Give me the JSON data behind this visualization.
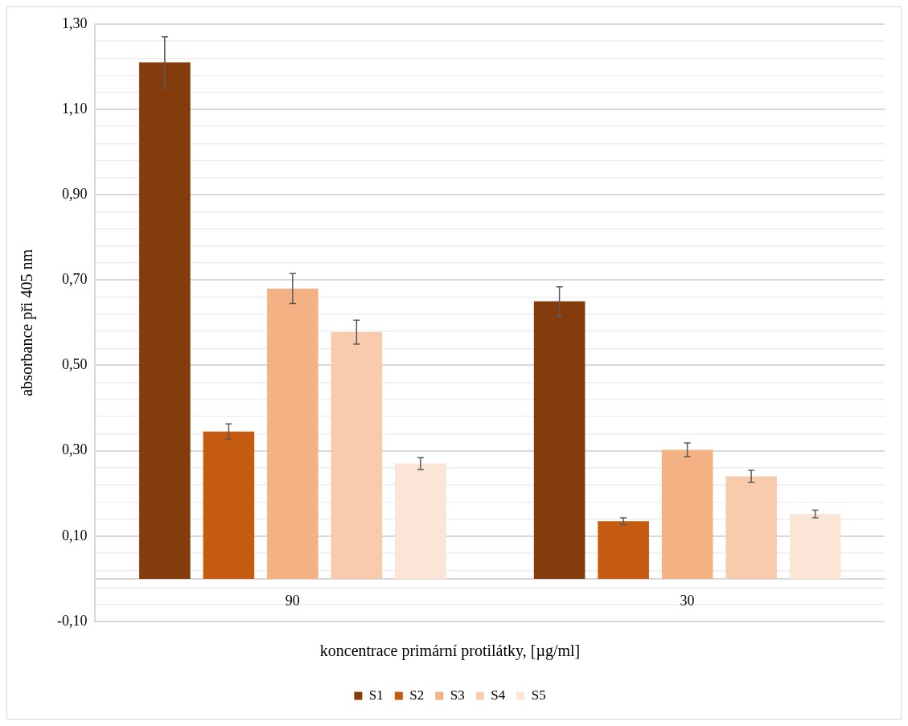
{
  "chart_data": {
    "type": "bar",
    "xlabel": "koncentrace primární protilátky, [µg/ml]",
    "ylabel": "absorbance při 405 nm",
    "categories": [
      "90",
      "30"
    ],
    "series": [
      {
        "name": "S1",
        "color": "#843c0c",
        "values": [
          1.21,
          0.65
        ],
        "errors": [
          0.06,
          0.034
        ]
      },
      {
        "name": "S2",
        "color": "#c55a11",
        "values": [
          0.345,
          0.135
        ],
        "errors": [
          0.018,
          0.008
        ]
      },
      {
        "name": "S3",
        "color": "#f4b183",
        "values": [
          0.68,
          0.302
        ],
        "errors": [
          0.035,
          0.016
        ]
      },
      {
        "name": "S4",
        "color": "#f8cbad",
        "values": [
          0.578,
          0.24
        ],
        "errors": [
          0.028,
          0.014
        ]
      },
      {
        "name": "S5",
        "color": "#fbe5d6",
        "values": [
          0.27,
          0.152
        ],
        "errors": [
          0.014,
          0.009
        ]
      }
    ],
    "ylim": [
      -0.1,
      1.3
    ],
    "yticks": [
      {
        "value": -0.1,
        "label": "-0,10"
      },
      {
        "value": -0.06,
        "label": null
      },
      {
        "value": -0.02,
        "label": null
      },
      {
        "value": 0.02,
        "label": null
      },
      {
        "value": 0.06,
        "label": null
      },
      {
        "value": 0.1,
        "label": "0,10"
      },
      {
        "value": 0.14,
        "label": null
      },
      {
        "value": 0.18,
        "label": null
      },
      {
        "value": 0.22,
        "label": null
      },
      {
        "value": 0.26,
        "label": null
      },
      {
        "value": 0.3,
        "label": "0,30"
      },
      {
        "value": 0.34,
        "label": null
      },
      {
        "value": 0.38,
        "label": null
      },
      {
        "value": 0.42,
        "label": null
      },
      {
        "value": 0.46,
        "label": null
      },
      {
        "value": 0.5,
        "label": "0,50"
      },
      {
        "value": 0.54,
        "label": null
      },
      {
        "value": 0.58,
        "label": null
      },
      {
        "value": 0.62,
        "label": null
      },
      {
        "value": 0.66,
        "label": null
      },
      {
        "value": 0.7,
        "label": "0,70"
      },
      {
        "value": 0.74,
        "label": null
      },
      {
        "value": 0.78,
        "label": null
      },
      {
        "value": 0.82,
        "label": null
      },
      {
        "value": 0.86,
        "label": null
      },
      {
        "value": 0.9,
        "label": "0,90"
      },
      {
        "value": 0.94,
        "label": null
      },
      {
        "value": 0.98,
        "label": null
      },
      {
        "value": 1.02,
        "label": null
      },
      {
        "value": 1.06,
        "label": null
      },
      {
        "value": 1.1,
        "label": "1,10"
      },
      {
        "value": 1.14,
        "label": null
      },
      {
        "value": 1.18,
        "label": null
      },
      {
        "value": 1.22,
        "label": null
      },
      {
        "value": 1.26,
        "label": null
      },
      {
        "value": 1.3,
        "label": "1,30"
      }
    ],
    "grid": "y",
    "legend": "bottom"
  }
}
